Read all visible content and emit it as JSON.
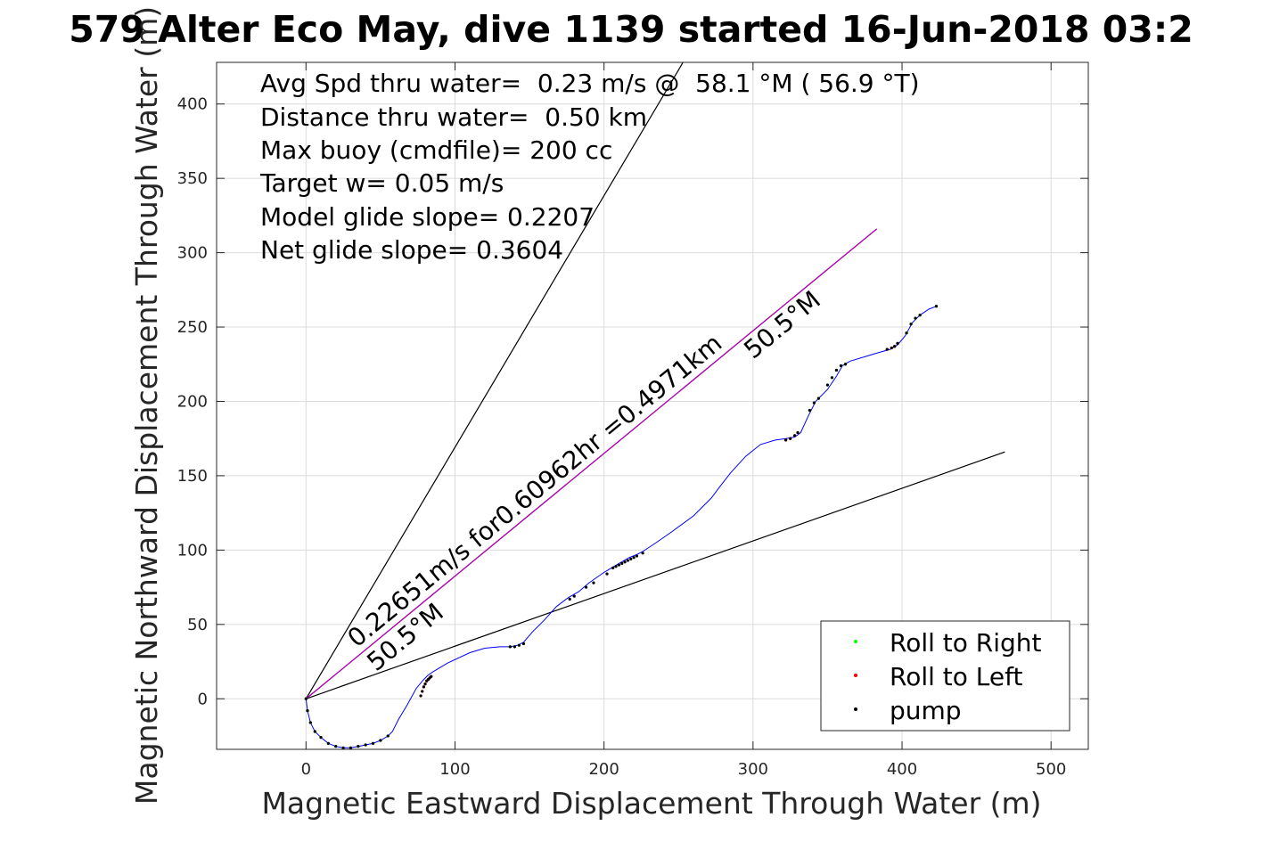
{
  "chart_data": {
    "type": "scatter",
    "title": "579 Alter Eco May, dive 1139 started 16-Jun-2018 03:2",
    "xlabel": "Magnetic Eastward Displacement Through Water (m)",
    "ylabel": "Magnetic Northward Displacement Through Water (m)",
    "xlim": [
      -60,
      525
    ],
    "ylim": [
      -34,
      428
    ],
    "xticks": [
      0,
      100,
      200,
      300,
      400,
      500
    ],
    "yticks": [
      0,
      50,
      100,
      150,
      200,
      250,
      300,
      350,
      400
    ],
    "xtick_labels": [
      "0",
      "100",
      "200",
      "300",
      "400",
      "500"
    ],
    "ytick_labels": [
      "0",
      "50",
      "100",
      "150",
      "200",
      "250",
      "300",
      "350",
      "400"
    ],
    "grid": true,
    "legend_position": "bottom-right",
    "annotations": [
      "Avg Spd thru water=  0.23 m/s @  58.1 °M ( 56.9 °T)",
      "Distance thru water=  0.50 km",
      "Max buoy (cmdfile)= 200 cc",
      "Target w= 0.05 m/s",
      "Model glide slope= 0.2207",
      "Net glide slope= 0.3604"
    ],
    "line_labels": {
      "speed_label": "0.22651m/s for0.60962hr =0.4971km",
      "heading_near": "50.5°M",
      "heading_far": "50.5°M"
    },
    "reference_lines": [
      {
        "color": "#000000",
        "x": [
          0,
          253
        ],
        "y": [
          0,
          428
        ]
      },
      {
        "color": "#000000",
        "x": [
          0,
          469
        ],
        "y": [
          0,
          166
        ]
      },
      {
        "color": "#000000",
        "x": [
          0,
          383
        ],
        "y": [
          0,
          316
        ]
      },
      {
        "color": "#bf00bf",
        "x": [
          0,
          383
        ],
        "y": [
          0,
          316
        ]
      }
    ],
    "track": {
      "color": "#0000ff",
      "x": [
        0,
        1,
        3,
        6,
        10,
        15,
        20,
        25,
        30,
        35,
        40,
        45,
        50,
        55,
        58,
        62,
        68,
        74,
        79,
        82,
        85,
        95,
        110,
        120,
        130,
        137,
        142,
        146,
        152,
        160,
        168,
        176,
        183,
        190,
        200,
        210,
        217,
        222,
        226,
        235,
        245,
        260,
        272,
        278,
        285,
        295,
        305,
        315,
        322,
        328,
        332,
        337,
        342,
        350,
        356,
        360,
        365,
        375,
        385,
        392,
        397,
        402,
        407,
        412,
        418,
        423
      ],
      "y": [
        0,
        -8,
        -16,
        -22,
        -26,
        -30,
        -32,
        -33,
        -33,
        -32,
        -31,
        -30,
        -28,
        -25,
        -22,
        -14,
        -4,
        7,
        13,
        16,
        18,
        24,
        31,
        34,
        35,
        35,
        36,
        38,
        45,
        53,
        62,
        68,
        72,
        78,
        85,
        91,
        95,
        97,
        99,
        105,
        112,
        123,
        135,
        143,
        152,
        163,
        171,
        174,
        175,
        176,
        179,
        190,
        200,
        208,
        217,
        224,
        227,
        230,
        233,
        235,
        238,
        244,
        253,
        258,
        262,
        264
      ]
    },
    "series": [
      {
        "name": "Roll to Right",
        "color": "#00ff00",
        "x": [
          0,
          1,
          3,
          6,
          10,
          15,
          20,
          25,
          30,
          35,
          40,
          45,
          50,
          55,
          137,
          140,
          143,
          146,
          338,
          341,
          344,
          350,
          353,
          356,
          359,
          362,
          403,
          406,
          409,
          412,
          423
        ],
        "y": [
          0,
          -8,
          -16,
          -22,
          -26,
          -30,
          -32,
          -33,
          -33,
          -32,
          -31,
          -30,
          -28,
          -25,
          35,
          35,
          36,
          37,
          194,
          199,
          202,
          211,
          216,
          221,
          224,
          225,
          246,
          252,
          256,
          258,
          264
        ]
      },
      {
        "name": "Roll to Left",
        "color": "#ff0000",
        "x": [
          77,
          78,
          79,
          80,
          81,
          82,
          83,
          84,
          322,
          325,
          328,
          330,
          390,
          393,
          395,
          397
        ],
        "y": [
          2,
          5,
          8,
          10,
          12,
          13,
          14,
          15,
          174,
          175,
          177,
          179,
          235,
          236,
          237,
          239
        ]
      },
      {
        "name": "pump",
        "color": "#000000",
        "x": [
          0,
          1,
          3,
          6,
          10,
          15,
          20,
          25,
          30,
          35,
          40,
          45,
          50,
          55,
          77,
          78,
          79,
          80,
          81,
          82,
          83,
          84,
          137,
          140,
          143,
          146,
          177,
          180,
          188,
          193,
          202,
          206,
          208,
          210,
          212,
          214,
          216,
          218,
          220,
          222,
          226,
          322,
          325,
          328,
          330,
          338,
          341,
          344,
          350,
          353,
          356,
          359,
          362,
          390,
          393,
          395,
          397,
          403,
          406,
          409,
          412,
          423
        ],
        "y": [
          0,
          -8,
          -16,
          -22,
          -26,
          -30,
          -32,
          -33,
          -33,
          -32,
          -31,
          -30,
          -28,
          -25,
          2,
          5,
          8,
          10,
          12,
          13,
          14,
          15,
          35,
          35,
          36,
          37,
          67,
          69,
          75,
          78,
          84,
          88,
          89,
          90,
          91,
          92,
          93,
          94,
          95,
          96,
          98,
          174,
          175,
          177,
          179,
          194,
          199,
          202,
          211,
          216,
          221,
          224,
          225,
          235,
          236,
          237,
          239,
          246,
          252,
          256,
          258,
          264
        ]
      }
    ]
  }
}
